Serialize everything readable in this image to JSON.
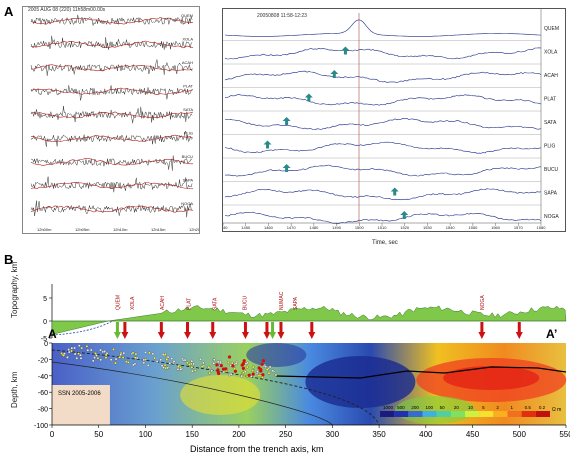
{
  "panel_a": {
    "letter": "A",
    "left_header": "2005 AUG 08 (220) 11h58m00.00s",
    "left_stations": [
      "QUEM",
      "XOLA",
      "ACAH",
      "PLAT",
      "SATA",
      "PLIG",
      "BUCU",
      "SAPA",
      "NOGA"
    ],
    "left_time_labels": [
      "12h00m",
      "12h05m",
      "12h10m",
      "12h15m",
      "12h20m"
    ],
    "right_header": "20050808 11:58-12:23",
    "right_stations": [
      "QUEM",
      "XOLA",
      "ACAH",
      "PLAT",
      "SATA",
      "PLIG",
      "BUCU",
      "SAPA",
      "NOGA"
    ],
    "right_x_ticks": [
      "1440",
      "1450",
      "1460",
      "1470",
      "1480",
      "1490",
      "1500",
      "1510",
      "1520",
      "1530",
      "1540",
      "1550",
      "1560",
      "1570",
      "1580"
    ],
    "right_xlabel": "Time, sec"
  },
  "panel_b": {
    "letter": "B",
    "topo_ylabel": "Topography, km",
    "topo_ticks": [
      "5",
      "0",
      "-5"
    ],
    "label_a": "A",
    "label_a_prime": "A’",
    "depth_ylabel": "Depth, km",
    "depth_ticks": [
      "0",
      "-20",
      "-40",
      "-60",
      "-80",
      "-100"
    ],
    "x_ticks": [
      "0",
      "50",
      "100",
      "150",
      "200",
      "250",
      "300",
      "350",
      "400",
      "450",
      "500",
      "550"
    ],
    "xlabel": "Distance from the trench axis, km",
    "ssn_label": "SSN 2005-2006",
    "colorbar_ticks": [
      "1000",
      "500",
      "200",
      "100",
      "50",
      "20",
      "10",
      "5",
      "2",
      "1",
      "0.5",
      "0.2"
    ],
    "colorbar_unit": "Ω m",
    "highlight_stations": [
      "QUEM",
      "XOLA",
      "ACAH",
      "PLAT",
      "SATA",
      "BUCU",
      "NUMAC",
      "SAPA",
      "NOGA"
    ]
  },
  "colors": {
    "seismogram": "#333333",
    "trace": "#1a2a8a",
    "arrow": "#2a8a8a",
    "topo": "#7fc84a",
    "red_arrow": "#cc1111",
    "green_arrow": "#66bb33"
  }
}
